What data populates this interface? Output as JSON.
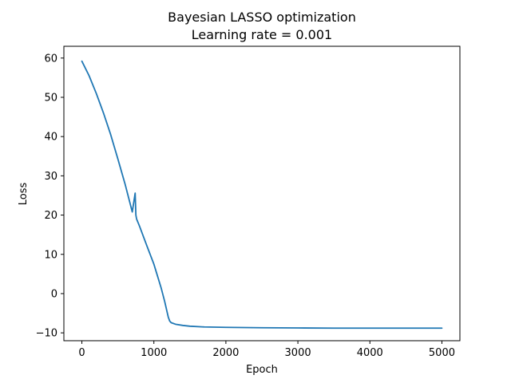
{
  "chart_data": {
    "type": "line",
    "title": "Bayesian LASSO optimization",
    "subtitle": "Learning rate = 0.001",
    "xlabel": "Epoch",
    "ylabel": "Loss",
    "xlim": [
      -250,
      5250
    ],
    "ylim": [
      -12,
      63
    ],
    "x_ticks": [
      0,
      1000,
      2000,
      3000,
      4000,
      5000
    ],
    "x_tick_labels": [
      "0",
      "1000",
      "2000",
      "3000",
      "4000",
      "5000"
    ],
    "y_ticks": [
      -10,
      0,
      10,
      20,
      30,
      40,
      50,
      60
    ],
    "y_tick_labels": [
      "−10",
      "0",
      "10",
      "20",
      "30",
      "40",
      "50",
      "60"
    ],
    "grid": false,
    "colors": {
      "line": "#1f77b4",
      "axes": "#000000",
      "background": "#ffffff"
    },
    "series": [
      {
        "x": [
          0,
          100,
          200,
          300,
          400,
          500,
          600,
          700,
          740,
          750,
          760,
          800,
          900,
          1000,
          1100,
          1150,
          1200,
          1220,
          1240,
          1300,
          1400,
          1500,
          1700,
          2000,
          2500,
          3000,
          3500,
          4000,
          4500,
          5000
        ],
        "y": [
          59.2,
          55.5,
          51.0,
          46.0,
          40.5,
          34.3,
          27.9,
          20.8,
          25.6,
          20.0,
          19.0,
          17.2,
          12.3,
          7.5,
          1.5,
          -2.0,
          -6.0,
          -7.0,
          -7.4,
          -7.8,
          -8.1,
          -8.3,
          -8.5,
          -8.6,
          -8.7,
          -8.75,
          -8.8,
          -8.8,
          -8.8,
          -8.8
        ]
      }
    ]
  }
}
